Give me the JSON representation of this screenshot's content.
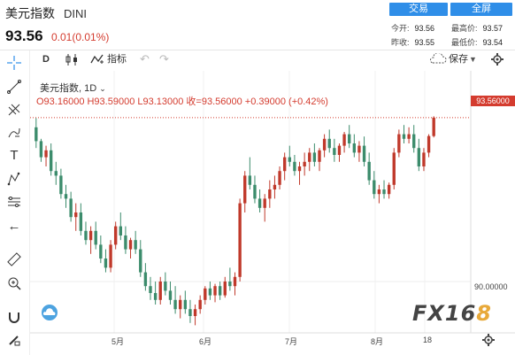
{
  "header": {
    "title": "美元指数",
    "code": "DINI",
    "price": "93.56",
    "change": "0.01(0.01%)",
    "trade_btn": "交易",
    "fullscreen_btn": "全屏",
    "stats": [
      {
        "label": "今开:",
        "value": "93.56"
      },
      {
        "label": "最高价:",
        "value": "93.57"
      },
      {
        "label": "昨收:",
        "value": "93.55"
      },
      {
        "label": "最低价:",
        "value": "93.54"
      }
    ]
  },
  "toolbar": {
    "interval": "D",
    "indicators_label": "指标",
    "save_label": "保存"
  },
  "chart_legend": {
    "symbol_label": "美元指数, 1D",
    "ohlc_text": "O93.16000  H93.59000  L93.13000  收=93.56000  +0.39000 (+0.42%)",
    "last_price_tag": "93.56000"
  },
  "chart_data": {
    "type": "candlestick",
    "title": "美元指数, 1D",
    "x_tick_labels": [
      "5月",
      "6月",
      "7月",
      "8月",
      "18"
    ],
    "y_tick_labels": [
      "90.00000"
    ],
    "last": 93.56,
    "candles_note": "daily OHLC approximated from screenshot; colors: up=#c33b2b, down=#3f8f6f",
    "colors": {
      "up": "#c0392b",
      "down": "#3c8c6c"
    },
    "candles": [
      [
        93.35,
        93.55,
        92.9,
        93.05
      ],
      [
        93.05,
        93.1,
        92.6,
        92.7
      ],
      [
        92.7,
        92.95,
        92.5,
        92.85
      ],
      [
        92.85,
        93.0,
        92.3,
        92.4
      ],
      [
        92.4,
        92.6,
        92.1,
        92.3
      ],
      [
        92.3,
        92.45,
        91.8,
        91.9
      ],
      [
        91.9,
        92.1,
        91.6,
        91.8
      ],
      [
        91.8,
        91.95,
        91.3,
        91.4
      ],
      [
        91.4,
        91.7,
        91.1,
        91.5
      ],
      [
        91.5,
        91.7,
        91.0,
        91.1
      ],
      [
        91.1,
        91.3,
        90.8,
        90.9
      ],
      [
        90.9,
        91.2,
        90.6,
        91.1
      ],
      [
        91.1,
        91.3,
        90.7,
        90.8
      ],
      [
        90.8,
        91.0,
        90.4,
        90.5
      ],
      [
        90.5,
        90.7,
        90.2,
        90.3
      ],
      [
        90.3,
        90.9,
        90.2,
        90.8
      ],
      [
        90.8,
        91.3,
        90.7,
        91.2
      ],
      [
        91.2,
        91.5,
        90.9,
        91.0
      ],
      [
        91.0,
        91.2,
        90.6,
        90.7
      ],
      [
        90.7,
        90.95,
        90.5,
        90.9
      ],
      [
        90.9,
        91.1,
        90.6,
        90.7
      ],
      [
        90.7,
        90.9,
        90.1,
        90.2
      ],
      [
        90.2,
        90.4,
        89.8,
        89.9
      ],
      [
        89.9,
        90.1,
        89.6,
        89.75
      ],
      [
        89.75,
        90.0,
        89.5,
        89.6
      ],
      [
        89.6,
        90.1,
        89.5,
        90.0
      ],
      [
        90.0,
        90.2,
        89.7,
        89.8
      ],
      [
        89.8,
        90.0,
        89.5,
        89.6
      ],
      [
        89.6,
        89.9,
        89.3,
        89.4
      ],
      [
        89.4,
        89.7,
        89.2,
        89.6
      ],
      [
        89.6,
        89.8,
        89.3,
        89.4
      ],
      [
        89.4,
        89.6,
        89.1,
        89.25
      ],
      [
        89.25,
        89.5,
        89.05,
        89.4
      ],
      [
        89.4,
        89.7,
        89.3,
        89.6
      ],
      [
        89.6,
        89.9,
        89.5,
        89.85
      ],
      [
        89.85,
        90.0,
        89.6,
        89.7
      ],
      [
        89.7,
        89.95,
        89.55,
        89.9
      ],
      [
        89.9,
        90.0,
        89.6,
        89.7
      ],
      [
        89.7,
        90.1,
        89.65,
        90.0
      ],
      [
        90.0,
        90.3,
        89.8,
        89.9
      ],
      [
        89.9,
        90.2,
        89.7,
        90.1
      ],
      [
        90.1,
        91.8,
        90.0,
        91.7
      ],
      [
        91.7,
        92.4,
        91.5,
        92.3
      ],
      [
        92.3,
        92.7,
        92.0,
        92.1
      ],
      [
        92.1,
        92.3,
        91.7,
        91.8
      ],
      [
        91.8,
        92.0,
        91.5,
        91.6
      ],
      [
        91.6,
        91.9,
        91.3,
        91.8
      ],
      [
        91.8,
        92.2,
        91.6,
        92.0
      ],
      [
        92.0,
        92.3,
        91.8,
        92.1
      ],
      [
        92.1,
        92.5,
        92.0,
        92.4
      ],
      [
        92.4,
        92.8,
        92.2,
        92.7
      ],
      [
        92.7,
        92.95,
        92.5,
        92.6
      ],
      [
        92.6,
        92.75,
        92.3,
        92.4
      ],
      [
        92.4,
        92.6,
        92.1,
        92.5
      ],
      [
        92.5,
        92.8,
        92.3,
        92.6
      ],
      [
        92.6,
        92.9,
        92.4,
        92.8
      ],
      [
        92.8,
        93.0,
        92.5,
        92.6
      ],
      [
        92.6,
        92.9,
        92.4,
        92.85
      ],
      [
        92.85,
        93.2,
        92.7,
        93.1
      ],
      [
        93.1,
        93.3,
        92.8,
        92.9
      ],
      [
        92.9,
        93.1,
        92.6,
        92.75
      ],
      [
        92.75,
        93.0,
        92.6,
        92.95
      ],
      [
        92.95,
        93.25,
        92.8,
        93.2
      ],
      [
        93.2,
        93.4,
        92.9,
        93.0
      ],
      [
        93.0,
        93.2,
        92.7,
        92.8
      ],
      [
        92.8,
        93.05,
        92.6,
        92.95
      ],
      [
        92.95,
        93.15,
        92.5,
        92.6
      ],
      [
        92.6,
        92.8,
        92.1,
        92.2
      ],
      [
        92.2,
        92.4,
        91.8,
        91.9
      ],
      [
        91.9,
        92.1,
        91.7,
        92.0
      ],
      [
        92.0,
        92.2,
        91.8,
        91.9
      ],
      [
        91.9,
        92.15,
        91.8,
        92.1
      ],
      [
        92.1,
        92.9,
        92.0,
        92.8
      ],
      [
        92.8,
        93.3,
        92.7,
        93.2
      ],
      [
        93.2,
        93.4,
        93.0,
        93.1
      ],
      [
        93.1,
        93.35,
        93.0,
        93.2
      ],
      [
        93.2,
        93.4,
        92.8,
        92.9
      ],
      [
        92.9,
        93.1,
        92.4,
        92.5
      ],
      [
        92.5,
        92.9,
        92.4,
        92.8
      ],
      [
        92.8,
        93.2,
        92.7,
        93.16
      ],
      [
        93.16,
        93.59,
        93.13,
        93.56
      ]
    ],
    "y_min": 89.0,
    "y_max": 94.0
  }
}
